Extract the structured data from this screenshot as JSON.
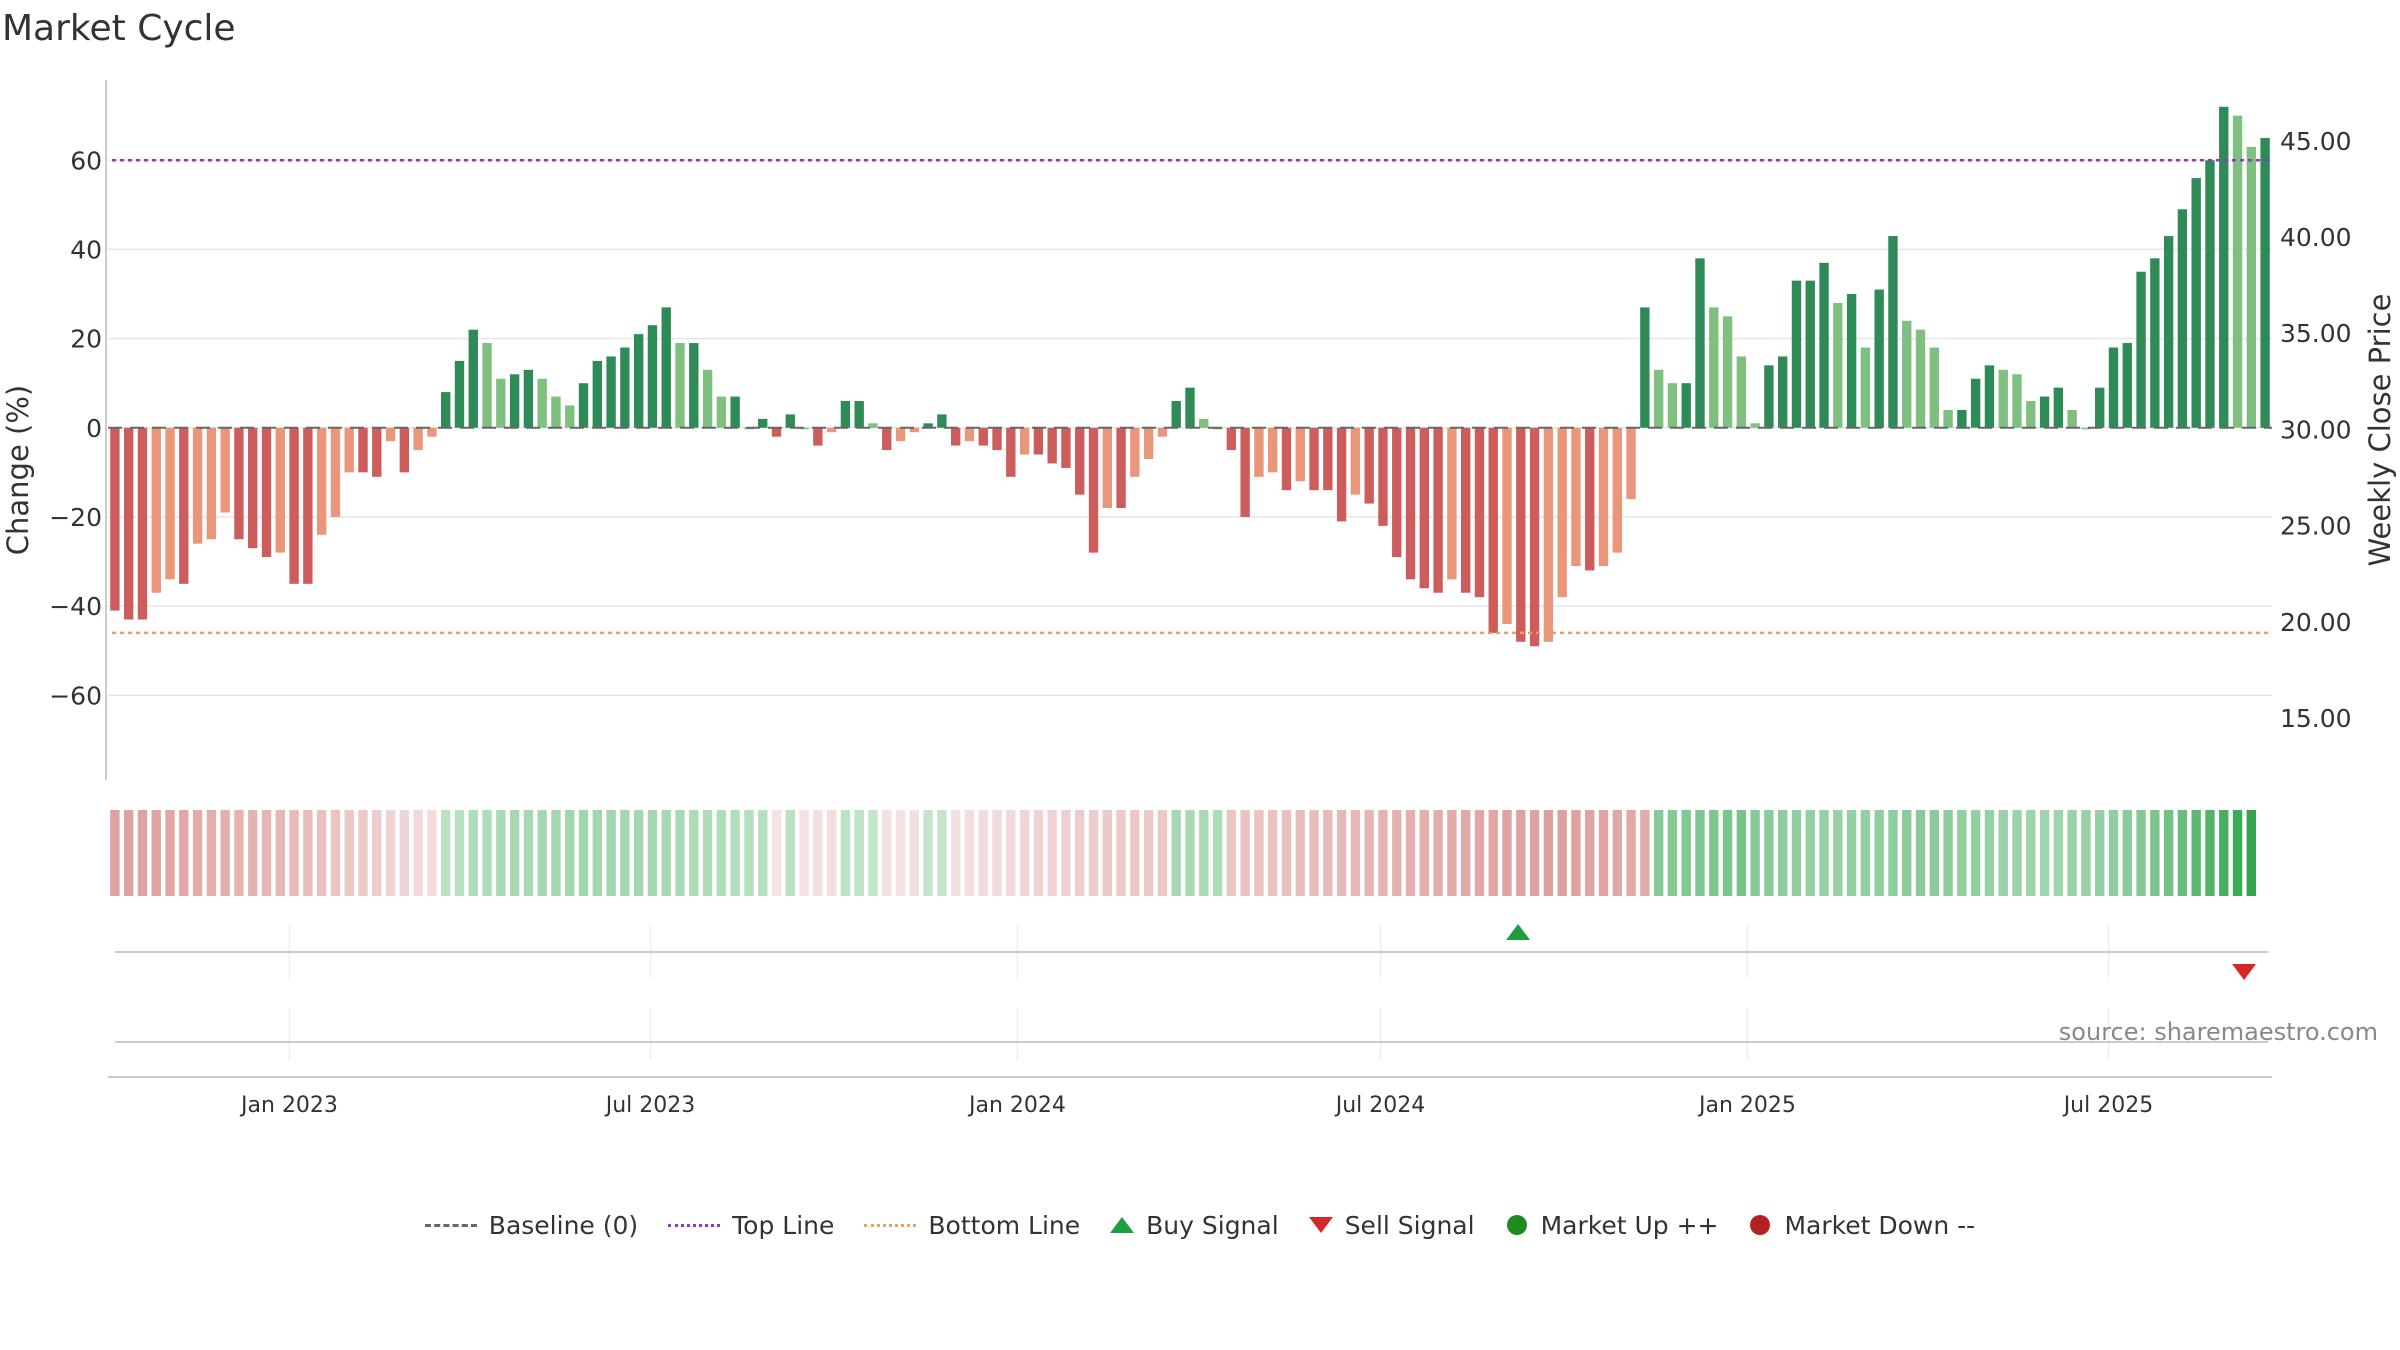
{
  "chart_data": {
    "type": "bar",
    "title": "Market Cycle",
    "ylabel": "Change (%)",
    "y2label": "Weekly Close Price",
    "source": "source: sharemaestro.com",
    "ylim": [
      -79,
      78
    ],
    "yticks": [
      60,
      40,
      20,
      0,
      -20,
      -40,
      -60
    ],
    "ytick_labels": [
      "60",
      "40",
      "20",
      "0",
      "−20",
      "−40",
      "−60"
    ],
    "y2lim": [
      11.78,
      48.16
    ],
    "y2ticks": [
      45,
      40,
      35,
      30,
      25,
      20,
      15
    ],
    "y2tick_labels": [
      "45.00",
      "40.00",
      "35.00",
      "30.00",
      "25.00",
      "20.00",
      "15.00"
    ],
    "x_start": "2022-10-02",
    "x_end": "2025-09-21",
    "xticks": [
      "2023-01-01",
      "2023-07-01",
      "2024-01-01",
      "2024-07-01",
      "2025-01-01",
      "2025-07-01"
    ],
    "xtick_labels": [
      "Jan 2023",
      "Jul 2023",
      "Jan 2024",
      "Jul 2024",
      "Jan 2025",
      "Jul 2025"
    ],
    "top_line": 60,
    "bottom_line": -46,
    "grid": true,
    "values": [
      -41,
      -43,
      -43,
      -37,
      -34,
      -35,
      -26,
      -25,
      -19,
      -25,
      -27,
      -29,
      -28,
      -35,
      -35,
      -24,
      -20,
      -10,
      -10,
      -11,
      -3,
      -10,
      -5,
      -2,
      8,
      15,
      22,
      19,
      11,
      12,
      13,
      11,
      7,
      5,
      10,
      15,
      16,
      18,
      21,
      23,
      27,
      19,
      19,
      13,
      7,
      7,
      0,
      2,
      -2,
      3,
      0,
      -4,
      -1,
      6,
      6,
      1,
      -5,
      -3,
      -1,
      1,
      3,
      -4,
      -3,
      -4,
      -5,
      -11,
      -6,
      -6,
      -8,
      -9,
      -15,
      -28,
      -18,
      -18,
      -11,
      -7,
      -2,
      6,
      9,
      2,
      0,
      -5,
      -20,
      -11,
      -10,
      -14,
      -12,
      -14,
      -14,
      -21,
      -15,
      -17,
      -22,
      -29,
      -34,
      -36,
      -37,
      -34,
      -37,
      -38,
      -46,
      -44,
      -48,
      -49,
      -48,
      -38,
      -31,
      -32,
      -31,
      -28,
      -16,
      27,
      13,
      10,
      10,
      38,
      27,
      25,
      16,
      1,
      14,
      16,
      33,
      33,
      37,
      28,
      30,
      18,
      31,
      43,
      24,
      22,
      18,
      4,
      4,
      11,
      14,
      13,
      12,
      6,
      7,
      9,
      4,
      0,
      9,
      18,
      19,
      35,
      38,
      43,
      49,
      56,
      60,
      72,
      70,
      63,
      65
    ],
    "shade_values": [
      -41,
      -41,
      -41,
      -40,
      -38,
      -37,
      -36,
      -34,
      -33,
      -32,
      -31,
      -30,
      -29,
      -27,
      -26,
      -24,
      -22,
      -20,
      -18,
      -16,
      -14,
      -12,
      -10,
      -8,
      8,
      10,
      12,
      13,
      15,
      16,
      16,
      17,
      17,
      18,
      18,
      18,
      18,
      17,
      17,
      17,
      16,
      15,
      14,
      13,
      13,
      12,
      11,
      10,
      -4,
      9,
      -5,
      -6,
      -7,
      8,
      7,
      6,
      -5,
      -5,
      -6,
      5,
      5,
      -6,
      -7,
      -8,
      -9,
      -10,
      -12,
      -13,
      -14,
      -15,
      -16,
      -17,
      -18,
      -18,
      -19,
      -19,
      -20,
      16,
      15,
      15,
      14,
      -21,
      -22,
      -22,
      -23,
      -24,
      -25,
      -26,
      -27,
      -28,
      -29,
      -30,
      -31,
      -32,
      -33,
      -34,
      -35,
      -36,
      -37,
      -38,
      -39,
      -40,
      -41,
      -41,
      -42,
      -42,
      -41,
      -40,
      -39,
      -38,
      -37,
      -36,
      28,
      29,
      30,
      31,
      32,
      33,
      34,
      28,
      27,
      26,
      25,
      24,
      23,
      22,
      23,
      24,
      25,
      26,
      27,
      28,
      27,
      26,
      25,
      24,
      23,
      22,
      21,
      20,
      19,
      20,
      21,
      22,
      23,
      25,
      27,
      30,
      33,
      36,
      40,
      44,
      48,
      52,
      56,
      60
    ],
    "price_line": [],
    "signals": {
      "buy": [
        {
          "x": "2024-09-08"
        }
      ],
      "sell": [
        {
          "x": "2025-09-07"
        }
      ]
    },
    "legend_position": "bottom",
    "legend": [
      {
        "label": "Baseline (0)",
        "kind": "dash",
        "color": "#666666"
      },
      {
        "label": "Top Line",
        "kind": "dot",
        "color": "#9933cc"
      },
      {
        "label": "Bottom Line",
        "kind": "dot",
        "color": "#e6a060"
      },
      {
        "label": "Buy Signal",
        "kind": "tri-up",
        "color": "#1e9e3e"
      },
      {
        "label": "Sell Signal",
        "kind": "tri-down",
        "color": "#d62728"
      },
      {
        "label": "Market Up ++",
        "kind": "circle",
        "color": "#1e8c1e"
      },
      {
        "label": "Market Down --",
        "kind": "circle",
        "color": "#b22222"
      }
    ],
    "colors": {
      "strong_up": "#2e8b57",
      "weak_up": "#7fbf7f",
      "strong_down": "#cd5c5c",
      "weak_down": "#e9967a",
      "shade_up": "#2ea34a",
      "shade_down": "#c0504d"
    }
  }
}
